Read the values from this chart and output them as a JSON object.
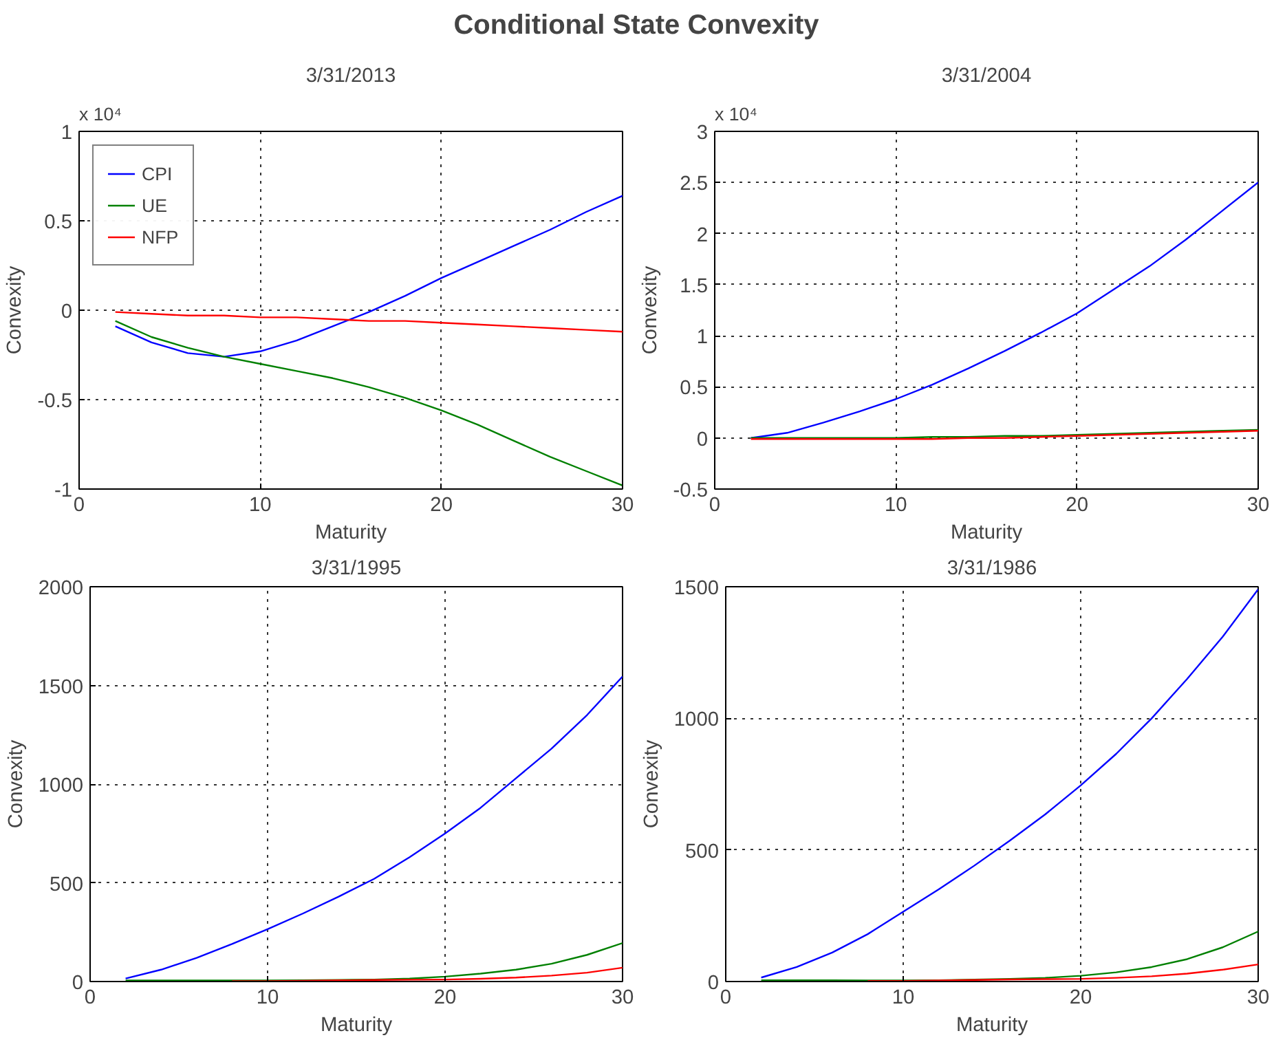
{
  "chart_data": [
    {
      "type": "line",
      "title": "3/31/2013",
      "xlabel": "Maturity",
      "ylabel": "Convexity",
      "annotations": [
        "Conditional State Convexity",
        "x 10⁴"
      ],
      "x": [
        2,
        4,
        6,
        8,
        10,
        12,
        14,
        16,
        18,
        20,
        22,
        24,
        26,
        28,
        30
      ],
      "xlim": [
        0,
        30
      ],
      "xticks": [
        0,
        10,
        20,
        30
      ],
      "ylim": [
        -1,
        1
      ],
      "yticks": [
        -1,
        -0.5,
        0,
        0.5,
        1
      ],
      "grid": true,
      "legend": "top left",
      "series": [
        {
          "name": "CPI",
          "color": "#0000ff",
          "values": [
            -0.09,
            -0.18,
            -0.24,
            -0.26,
            -0.23,
            -0.17,
            -0.09,
            -0.01,
            0.08,
            0.18,
            0.27,
            0.36,
            0.45,
            0.55,
            0.64
          ]
        },
        {
          "name": "UE",
          "color": "#008000",
          "values": [
            -0.06,
            -0.15,
            -0.21,
            -0.26,
            -0.3,
            -0.34,
            -0.38,
            -0.43,
            -0.49,
            -0.56,
            -0.64,
            -0.73,
            -0.82,
            -0.9,
            -0.98
          ]
        },
        {
          "name": "NFP",
          "color": "#ff0000",
          "values": [
            -0.01,
            -0.02,
            -0.03,
            -0.03,
            -0.04,
            -0.04,
            -0.05,
            -0.06,
            -0.06,
            -0.07,
            -0.08,
            -0.09,
            -0.1,
            -0.11,
            -0.12
          ]
        }
      ]
    },
    {
      "type": "line",
      "title": "3/31/2004",
      "xlabel": "Maturity",
      "ylabel": "Convexity",
      "annotations": [
        "x 10⁴"
      ],
      "x": [
        2,
        4,
        6,
        8,
        10,
        12,
        14,
        16,
        18,
        20,
        22,
        24,
        26,
        28,
        30
      ],
      "xlim": [
        0,
        30
      ],
      "xticks": [
        0,
        10,
        20,
        30
      ],
      "ylim": [
        -0.5,
        3
      ],
      "yticks": [
        -0.5,
        0,
        0.5,
        1,
        1.5,
        2,
        2.5,
        3
      ],
      "grid": true,
      "series": [
        {
          "color": "#0000ff",
          "values": [
            0,
            0.05,
            0.15,
            0.26,
            0.38,
            0.52,
            0.68,
            0.85,
            1.03,
            1.22,
            1.45,
            1.68,
            1.94,
            2.22,
            2.5
          ]
        },
        {
          "color": "#008000",
          "values": [
            0,
            0,
            0,
            0,
            0,
            0.01,
            0.01,
            0.02,
            0.02,
            0.03,
            0.04,
            0.05,
            0.06,
            0.07,
            0.08
          ]
        },
        {
          "color": "#ff0000",
          "values": [
            -0.01,
            -0.01,
            -0.01,
            -0.01,
            -0.01,
            -0.01,
            0,
            0,
            0.01,
            0.02,
            0.03,
            0.04,
            0.05,
            0.06,
            0.07
          ]
        }
      ]
    },
    {
      "type": "line",
      "title": "3/31/1995",
      "xlabel": "Maturity",
      "ylabel": "Convexity",
      "x": [
        2,
        4,
        6,
        8,
        10,
        12,
        14,
        16,
        18,
        20,
        22,
        24,
        26,
        28,
        30
      ],
      "xlim": [
        0,
        30
      ],
      "xticks": [
        0,
        10,
        20,
        30
      ],
      "ylim": [
        0,
        2000
      ],
      "yticks": [
        0,
        500,
        1000,
        1500,
        2000
      ],
      "grid": true,
      "series": [
        {
          "color": "#0000ff",
          "values": [
            15,
            60,
            120,
            190,
            265,
            345,
            430,
            520,
            630,
            750,
            880,
            1030,
            1180,
            1350,
            1545
          ]
        },
        {
          "color": "#008000",
          "values": [
            5,
            5,
            5,
            5,
            5,
            6,
            8,
            10,
            15,
            25,
            40,
            60,
            90,
            135,
            195
          ]
        },
        {
          "color": "#ff0000",
          "values": [
            null,
            null,
            null,
            2,
            2,
            4,
            6,
            8,
            9,
            10,
            14,
            20,
            30,
            45,
            70
          ]
        }
      ]
    },
    {
      "type": "line",
      "title": "3/31/1986",
      "xlabel": "Maturity",
      "ylabel": "Convexity",
      "x": [
        2,
        4,
        6,
        8,
        10,
        12,
        14,
        16,
        18,
        20,
        22,
        24,
        26,
        28,
        30
      ],
      "xlim": [
        0,
        30
      ],
      "xticks": [
        0,
        10,
        20,
        30
      ],
      "ylim": [
        0,
        1500
      ],
      "yticks": [
        0,
        500,
        1000,
        1500
      ],
      "grid": true,
      "series": [
        {
          "color": "#0000ff",
          "values": [
            15,
            55,
            110,
            180,
            265,
            350,
            440,
            535,
            635,
            745,
            865,
            1000,
            1150,
            1310,
            1490
          ]
        },
        {
          "color": "#008000",
          "values": [
            5,
            5,
            5,
            4,
            4,
            5,
            7,
            10,
            14,
            22,
            35,
            55,
            85,
            130,
            190
          ]
        },
        {
          "color": "#ff0000",
          "values": [
            null,
            null,
            null,
            2,
            2,
            4,
            6,
            8,
            9,
            10,
            14,
            20,
            30,
            45,
            65
          ]
        }
      ]
    }
  ]
}
